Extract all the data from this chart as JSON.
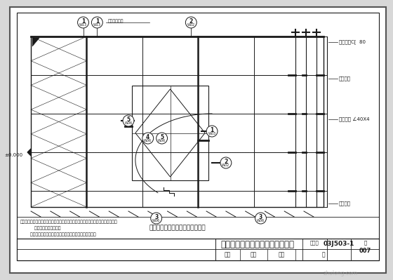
{
  "bg_color": "#d8d8d8",
  "paper_color": "#ffffff",
  "line_color": "#1a1a1a",
  "dark_color": "#000000",
  "title_main": "干挂石材墙面（密缝）立面示意图",
  "drawing_no": "03J503-1",
  "page_no": "007",
  "notes_line1": "注：一、本平立面是干挂石材墙面，外侧钢龙骨分格按照实际情况调整相关尺寸大样",
  "notes_line2": "          其他构件做法见图纸。",
  "notes_line3": "       二、角码和挂件等规格根据情况，（建议分布使用规格）",
  "label_shenhe": "审核",
  "label_jiaodui": "校对",
  "label_sheji": "设计",
  "label_tu": "图",
  "label_tujihao": "图集号",
  "right_labels": [
    "顶槽铝板C[  80",
    "顶槽铝板",
    "铝材规格 ∠40X4",
    "底槽铝板"
  ],
  "center_diagram_title": "干挂石材墙面（密缝）立面示意图",
  "elevation_label": "±0.000",
  "top_note": "防火岩棉构造",
  "callout_top_left1": "1\nW13",
  "callout_top_left2": "1\nW13",
  "callout_top_mid": "2\nW02",
  "callout_mid_5": "5\nW06",
  "callout_mid_4": "4\nW06",
  "callout_mid_5b": "5\nW06",
  "callout_mid_1": "1\nW03",
  "callout_mid_2": "2\nW02",
  "callout_bot_3a": "3\nW06",
  "callout_bot_3b": "3\nW06"
}
